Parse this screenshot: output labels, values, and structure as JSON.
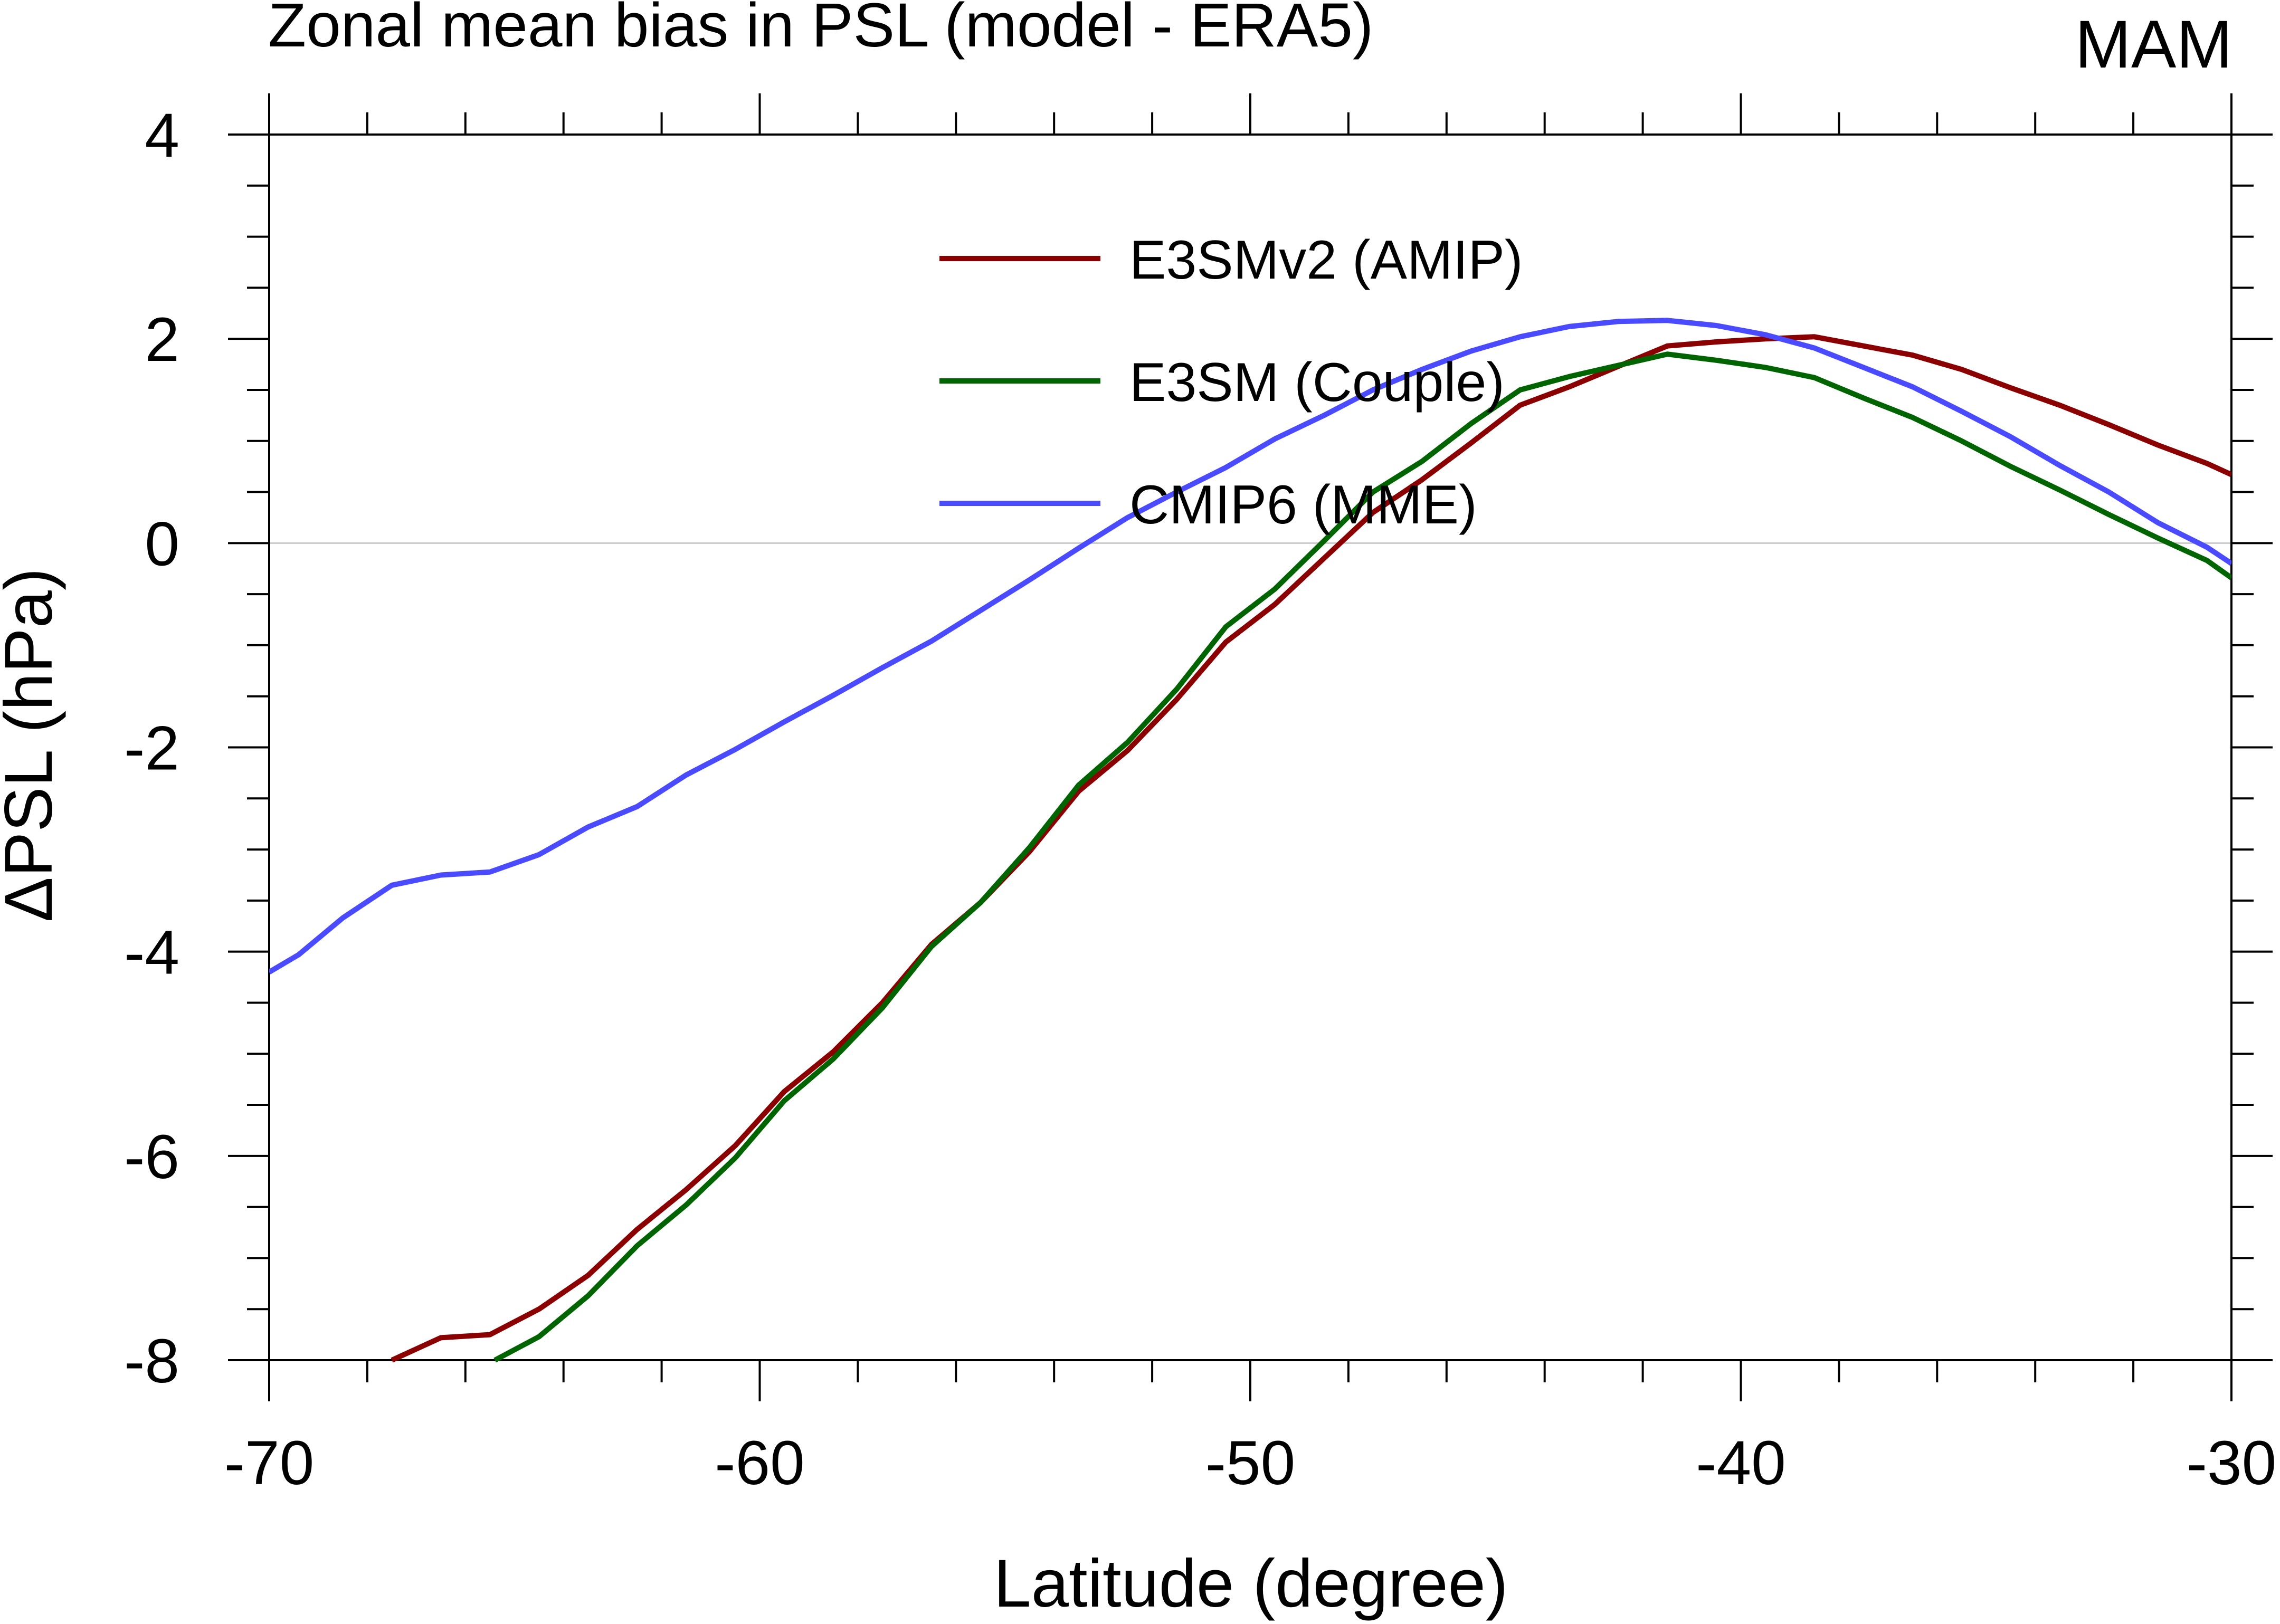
{
  "chart_data": {
    "type": "line",
    "title": "Zonal mean bias in PSL (model - ERA5)",
    "season": "MAM",
    "xlabel": "Latitude (degree)",
    "ylabel": "ΔPSL (hPa)",
    "xlim": [
      -70,
      -30
    ],
    "ylim": [
      -8,
      4
    ],
    "xticks": [
      -70,
      -60,
      -50,
      -40,
      -30
    ],
    "xtick_labels": [
      "-70",
      "-60",
      "-50",
      "-40",
      "-30"
    ],
    "yticks": [
      -8,
      -6,
      -4,
      -2,
      0,
      2,
      4
    ],
    "ytick_labels": [
      "-8",
      "-6",
      "-4",
      "-2",
      "0",
      "2",
      "4"
    ],
    "x_minor_step": 2,
    "y_minor_step": 0.5,
    "zero_line": true,
    "legend_position": "top-center",
    "series": [
      {
        "name": "E3SMv2 (AMIP)",
        "color": "#8b0000",
        "points": [
          [
            -67.5,
            -8.0
          ],
          [
            -66.5,
            -7.78
          ],
          [
            -65.5,
            -7.75
          ],
          [
            -64.5,
            -7.5
          ],
          [
            -63.5,
            -7.17
          ],
          [
            -62.5,
            -6.72
          ],
          [
            -61.5,
            -6.33
          ],
          [
            -60.5,
            -5.9
          ],
          [
            -59.5,
            -5.37
          ],
          [
            -58.5,
            -4.98
          ],
          [
            -57.5,
            -4.5
          ],
          [
            -56.5,
            -3.93
          ],
          [
            -55.5,
            -3.52
          ],
          [
            -54.5,
            -3.02
          ],
          [
            -53.5,
            -2.43
          ],
          [
            -52.5,
            -2.03
          ],
          [
            -51.5,
            -1.53
          ],
          [
            -50.5,
            -0.97
          ],
          [
            -49.5,
            -0.6
          ],
          [
            -48.5,
            -0.15
          ],
          [
            -47.5,
            0.3
          ],
          [
            -46.5,
            0.62
          ],
          [
            -45.5,
            0.98
          ],
          [
            -44.5,
            1.35
          ],
          [
            -43.5,
            1.53
          ],
          [
            -42.5,
            1.73
          ],
          [
            -41.5,
            1.93
          ],
          [
            -40.5,
            1.97
          ],
          [
            -39.5,
            2.0
          ],
          [
            -38.5,
            2.02
          ],
          [
            -37.5,
            1.93
          ],
          [
            -36.5,
            1.84
          ],
          [
            -35.5,
            1.7
          ],
          [
            -34.5,
            1.52
          ],
          [
            -33.5,
            1.35
          ],
          [
            -32.5,
            1.16
          ],
          [
            -31.5,
            0.96
          ],
          [
            -30.5,
            0.78
          ],
          [
            -30.0,
            0.67
          ]
        ]
      },
      {
        "name": "E3SM (Couple)",
        "color": "#006400",
        "points": [
          [
            -65.4,
            -8.0
          ],
          [
            -64.5,
            -7.77
          ],
          [
            -63.5,
            -7.37
          ],
          [
            -62.5,
            -6.88
          ],
          [
            -61.5,
            -6.48
          ],
          [
            -60.5,
            -6.02
          ],
          [
            -59.5,
            -5.46
          ],
          [
            -58.5,
            -5.05
          ],
          [
            -57.5,
            -4.55
          ],
          [
            -56.5,
            -3.95
          ],
          [
            -55.5,
            -3.52
          ],
          [
            -54.5,
            -2.98
          ],
          [
            -53.5,
            -2.37
          ],
          [
            -52.5,
            -1.95
          ],
          [
            -51.5,
            -1.43
          ],
          [
            -50.5,
            -0.82
          ],
          [
            -49.5,
            -0.45
          ],
          [
            -48.5,
            0.02
          ],
          [
            -47.5,
            0.5
          ],
          [
            -46.5,
            0.8
          ],
          [
            -45.5,
            1.17
          ],
          [
            -44.5,
            1.5
          ],
          [
            -43.5,
            1.63
          ],
          [
            -42.5,
            1.74
          ],
          [
            -41.5,
            1.85
          ],
          [
            -40.5,
            1.79
          ],
          [
            -39.5,
            1.72
          ],
          [
            -38.5,
            1.62
          ],
          [
            -37.5,
            1.42
          ],
          [
            -36.5,
            1.23
          ],
          [
            -35.5,
            1.0
          ],
          [
            -34.5,
            0.75
          ],
          [
            -33.5,
            0.52
          ],
          [
            -32.5,
            0.28
          ],
          [
            -31.5,
            0.05
          ],
          [
            -30.5,
            -0.17
          ],
          [
            -30.0,
            -0.34
          ]
        ]
      },
      {
        "name": "CMIP6 (MME)",
        "color": "#4a4aff",
        "points": [
          [
            -70.0,
            -4.2
          ],
          [
            -69.4,
            -4.03
          ],
          [
            -68.5,
            -3.67
          ],
          [
            -67.5,
            -3.35
          ],
          [
            -66.5,
            -3.25
          ],
          [
            -65.5,
            -3.22
          ],
          [
            -64.5,
            -3.05
          ],
          [
            -63.5,
            -2.78
          ],
          [
            -62.5,
            -2.58
          ],
          [
            -61.5,
            -2.27
          ],
          [
            -60.5,
            -2.02
          ],
          [
            -59.5,
            -1.75
          ],
          [
            -58.5,
            -1.49
          ],
          [
            -57.5,
            -1.22
          ],
          [
            -56.5,
            -0.96
          ],
          [
            -55.5,
            -0.66
          ],
          [
            -54.5,
            -0.36
          ],
          [
            -53.5,
            -0.05
          ],
          [
            -52.5,
            0.25
          ],
          [
            -51.5,
            0.5
          ],
          [
            -50.5,
            0.74
          ],
          [
            -49.5,
            1.02
          ],
          [
            -48.5,
            1.25
          ],
          [
            -47.5,
            1.5
          ],
          [
            -46.5,
            1.7
          ],
          [
            -45.5,
            1.88
          ],
          [
            -44.5,
            2.02
          ],
          [
            -43.5,
            2.12
          ],
          [
            -42.5,
            2.17
          ],
          [
            -41.5,
            2.18
          ],
          [
            -40.5,
            2.13
          ],
          [
            -39.5,
            2.04
          ],
          [
            -38.5,
            1.91
          ],
          [
            -37.5,
            1.72
          ],
          [
            -36.5,
            1.53
          ],
          [
            -35.5,
            1.29
          ],
          [
            -34.5,
            1.04
          ],
          [
            -33.5,
            0.76
          ],
          [
            -32.5,
            0.5
          ],
          [
            -31.5,
            0.2
          ],
          [
            -30.5,
            -0.04
          ],
          [
            -30.0,
            -0.2
          ]
        ]
      }
    ]
  }
}
